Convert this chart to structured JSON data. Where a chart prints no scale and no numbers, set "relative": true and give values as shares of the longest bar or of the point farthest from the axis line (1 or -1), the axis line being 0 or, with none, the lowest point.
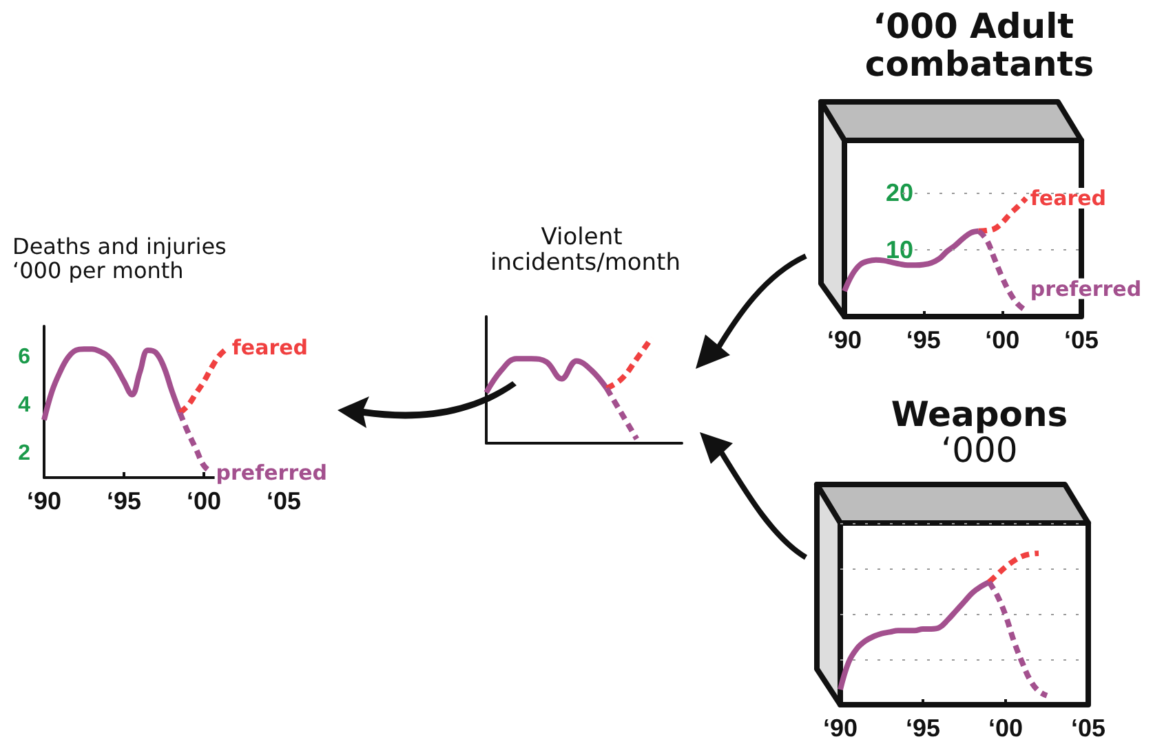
{
  "chart_data": [
    {
      "type": "line",
      "title": "Deaths and injuries ‘000 per month",
      "categories": [
        "‘90",
        null,
        null,
        null,
        null,
        null,
        null,
        null,
        null,
        null,
        "‘95",
        null,
        null,
        null,
        null,
        null,
        null,
        null,
        null,
        null,
        "‘00",
        null,
        null,
        null,
        null,
        null,
        null,
        null,
        null,
        null,
        "‘05"
      ],
      "ylim": [
        1,
        7.3
      ],
      "yticks": [
        2,
        4,
        6
      ],
      "marker": "none",
      "series": [
        {
          "color": "#a3508e",
          "line_style": "solid",
          "values": [
            3.4,
            4.6,
            5.4,
            6.0,
            6.3,
            6.35,
            6.35,
            6.25,
            6.05,
            5.6,
            5.0,
            4.45,
            5.4,
            6.3,
            6.2,
            5.6,
            4.6,
            3.7,
            null,
            null,
            null,
            null,
            null,
            null,
            null,
            null,
            null,
            null,
            null,
            null,
            null
          ]
        },
        {
          "name": "feared",
          "color": "#f04040",
          "line_style": "dashed",
          "values": [
            null,
            null,
            null,
            null,
            null,
            null,
            null,
            null,
            null,
            null,
            null,
            null,
            null,
            null,
            null,
            null,
            null,
            3.7,
            4.0,
            4.5,
            5.0,
            5.6,
            6.1,
            6.4,
            null,
            null,
            null,
            null,
            null,
            null,
            null
          ]
        },
        {
          "name": "preferred",
          "color": "#a3508e",
          "line_style": "dashed",
          "values": [
            null,
            null,
            null,
            null,
            null,
            null,
            null,
            null,
            null,
            null,
            null,
            null,
            null,
            null,
            null,
            null,
            null,
            3.7,
            2.9,
            2.2,
            1.5,
            1.2,
            null,
            null,
            null,
            null,
            null,
            null,
            null,
            null,
            null
          ]
        }
      ]
    },
    {
      "type": "line",
      "title": "Violent incidents/month",
      "relative": true,
      "tick_labels": false,
      "marker": "none",
      "categories": [
        null,
        null,
        null,
        null,
        null,
        null,
        null,
        null,
        null,
        null,
        null,
        null,
        null,
        null
      ],
      "series": [
        {
          "color": "#a3508e",
          "line_style": "solid",
          "values": [
            0.48,
            0.69,
            0.8,
            0.8,
            0.77,
            0.61,
            0.78,
            0.69,
            0.52,
            null,
            null,
            null,
            null,
            null
          ]
        },
        {
          "color": "#f04040",
          "line_style": "dashed",
          "values": [
            null,
            null,
            null,
            null,
            null,
            null,
            null,
            null,
            0.52,
            0.61,
            0.8,
            1,
            null,
            null
          ]
        },
        {
          "color": "#a3508e",
          "line_style": "dashed",
          "values": [
            null,
            null,
            null,
            null,
            null,
            null,
            null,
            null,
            0.52,
            0.28,
            0.04,
            null,
            null,
            null
          ]
        }
      ]
    },
    {
      "type": "line",
      "title": "‘000 Adult combatants",
      "categories": [
        "‘90",
        null,
        null,
        null,
        null,
        null,
        null,
        null,
        null,
        null,
        "‘95",
        null,
        null,
        null,
        null,
        null,
        null,
        null,
        null,
        null,
        "‘00",
        null,
        null,
        null,
        null,
        null,
        null,
        null,
        null,
        null,
        "‘05"
      ],
      "ylim": [
        -1.5,
        29
      ],
      "yticks": [
        10,
        20
      ],
      "grid": "y",
      "marker": "none",
      "series": [
        {
          "color": "#a3508e",
          "line_style": "solid",
          "values": [
            2.9,
            5.8,
            7.5,
            8.1,
            8.3,
            8.2,
            7.9,
            7.6,
            7.4,
            7.4,
            7.5,
            7.8,
            8.5,
            9.8,
            10.8,
            12.0,
            13.0,
            13.3,
            null,
            null,
            null,
            null,
            null,
            null,
            null,
            null,
            null,
            null,
            null,
            null,
            null
          ]
        },
        {
          "name": "feared",
          "color": "#f04040",
          "line_style": "dashed",
          "values": [
            null,
            null,
            null,
            null,
            null,
            null,
            null,
            null,
            null,
            null,
            null,
            null,
            null,
            null,
            null,
            null,
            null,
            13.3,
            13.4,
            13.7,
            14.8,
            16.3,
            17.6,
            19.0,
            null,
            null,
            null,
            null,
            null,
            null,
            null
          ]
        },
        {
          "name": "preferred",
          "color": "#a3508e",
          "line_style": "dashed",
          "values": [
            null,
            null,
            null,
            null,
            null,
            null,
            null,
            null,
            null,
            null,
            null,
            null,
            null,
            null,
            null,
            null,
            null,
            13.3,
            11.8,
            8.5,
            5.2,
            2.5,
            0.6,
            -0.5,
            null,
            null,
            null,
            null,
            null,
            null,
            null
          ]
        }
      ]
    },
    {
      "type": "line",
      "title": "Weapons",
      "subtitle": "‘000",
      "relative": true,
      "tick_labels": "x",
      "categories": [
        "‘90",
        null,
        null,
        null,
        null,
        null,
        null,
        null,
        null,
        null,
        "‘95",
        null,
        null,
        null,
        null,
        null,
        null,
        null,
        null,
        null,
        "‘00",
        null,
        null,
        null,
        null,
        null,
        null,
        null,
        null,
        null,
        "‘05"
      ],
      "grid": "y",
      "marker": "none",
      "series": [
        {
          "color": "#a3508e",
          "line_style": "solid",
          "values": [
            0.1,
            0.28,
            0.37,
            0.42,
            0.45,
            0.47,
            0.48,
            0.49,
            0.49,
            0.49,
            0.5,
            0.5,
            0.51,
            0.56,
            0.62,
            0.68,
            0.74,
            0.78,
            0.81,
            null,
            null,
            null,
            null,
            null,
            null,
            null,
            null,
            null,
            null,
            null,
            null
          ]
        },
        {
          "color": "#f04040",
          "line_style": "dashed",
          "values": [
            null,
            null,
            null,
            null,
            null,
            null,
            null,
            null,
            null,
            null,
            null,
            null,
            null,
            null,
            null,
            null,
            null,
            null,
            0.81,
            0.86,
            0.91,
            0.95,
            0.98,
            0.995,
            1,
            null,
            null,
            null,
            null,
            null,
            null
          ]
        },
        {
          "color": "#a3508e",
          "line_style": "dashed",
          "values": [
            null,
            null,
            null,
            null,
            null,
            null,
            null,
            null,
            null,
            null,
            null,
            null,
            null,
            null,
            null,
            null,
            null,
            null,
            0.81,
            0.72,
            0.59,
            0.42,
            0.28,
            0.16,
            0.09,
            0.06,
            null,
            null,
            null,
            null,
            null
          ]
        }
      ]
    }
  ]
}
